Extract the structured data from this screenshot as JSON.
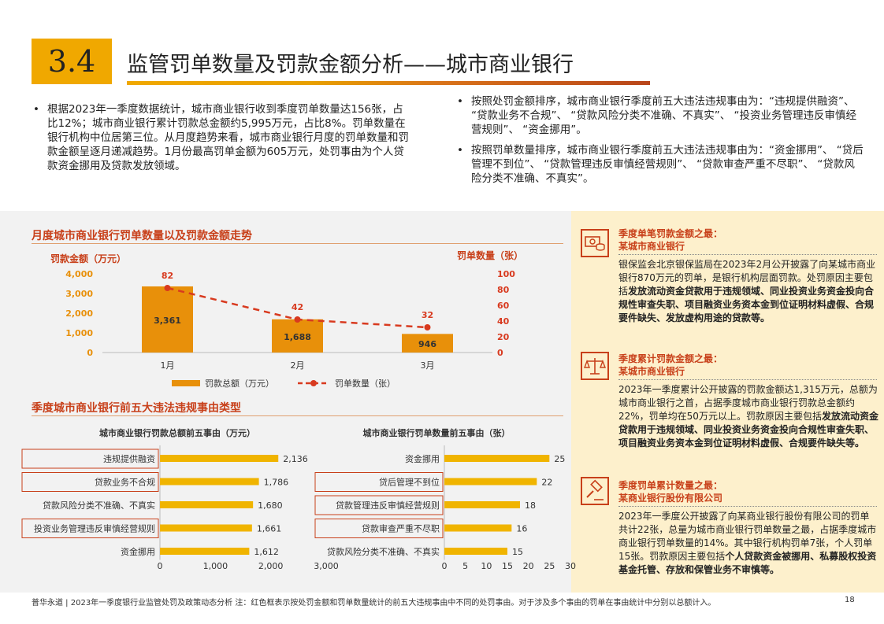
{
  "header": {
    "section_number": "3.4",
    "title": "监管罚单数量及罚款金额分析——城市商业银行"
  },
  "bullets_left": [
    "根据2023年一季度数据统计，城市商业银行收到季度罚单数量达156张，占比12%；城市商业银行累计罚款总金额约5,995万元，占比8%。罚单数量在银行机构中位居第三位。从月度趋势来看，城市商业银行月度的罚单数量和罚款金额呈逐月递减趋势。1月份最高罚单金额为605万元，处罚事由为个人贷款资金挪用及贷款发放领域。"
  ],
  "bullets_right": [
    "按照处罚金额排序，城市商业银行季度前五大违法违规事由为：“违规提供融资”、 “贷款业务不合规”、 “贷款风险分类不准确、不真实”、 “投资业务管理违反审慎经营规则”、 “资金挪用”。",
    "按照罚单数量排序，城市商业银行季度前五大违法违规事由为：“资金挪用”、 “贷后管理不到位”、 “贷款管理违反审慎经营规则”、 “贷款审查严重不尽职”、 “贷款风险分类不准确、不真实”。"
  ],
  "section1": {
    "title": "月度城市商业银行罚单数量以及罚款金额走势",
    "left_axis_title": "罚款金额（万元）",
    "right_axis_title": "罚单数量（张）"
  },
  "section2": {
    "title": "季度城市商业银行前五大违法违规事由类型"
  },
  "chart_data": [
    {
      "type": "bar",
      "title": "",
      "categories": [
        "1月",
        "2月",
        "3月"
      ],
      "series": [
        {
          "name": "罚款总额（万元）",
          "type": "bar",
          "axis": "left",
          "values": [
            3361,
            1688,
            946
          ],
          "labels": [
            "3,361",
            "1,688",
            "946"
          ],
          "color": "#e8900a"
        },
        {
          "name": "罚单数量（张）",
          "type": "line",
          "style": "dashed",
          "axis": "right",
          "values": [
            82,
            42,
            32
          ],
          "labels": [
            "82",
            "42",
            "32"
          ],
          "color": "#d83a1f"
        }
      ],
      "ylabel": "罚款金额（万元）",
      "ylim": [
        0,
        4000
      ],
      "yticks": [
        "0",
        "1,000",
        "2,000",
        "3,000",
        "4,000"
      ],
      "y2label": "罚单数量（张）",
      "y2lim": [
        0,
        100
      ],
      "y2ticks": [
        "0",
        "20",
        "40",
        "60",
        "80",
        "100"
      ],
      "legend": "bottom",
      "grid": false
    },
    {
      "type": "bar",
      "orientation": "horizontal",
      "title": "城市商业银行罚款总额前五事由（万元）",
      "categories": [
        "违规提供融资",
        "贷款业务不合规",
        "贷款风险分类不准确、不真实",
        "投资业务管理违反审慎经营规则",
        "资金挪用"
      ],
      "values": [
        2136,
        1786,
        1680,
        1661,
        1612
      ],
      "labels": [
        "2,136",
        "1,786",
        "1,680",
        "1,661",
        "1,612"
      ],
      "highlighted": [
        "违规提供融资",
        "贷款业务不合规",
        "投资业务管理违反审慎经营规则"
      ],
      "xlim": [
        0,
        3000
      ],
      "xticks": [
        "0",
        "1,000",
        "2,000",
        "3,000"
      ],
      "color": "#f0b400"
    },
    {
      "type": "bar",
      "orientation": "horizontal",
      "title": "城市商业银行罚单数量前五事由（张）",
      "categories": [
        "资金挪用",
        "贷后管理不到位",
        "贷款管理违反审慎经营规则",
        "贷款审查严重不尽职",
        "贷款风险分类不准确、不真实"
      ],
      "values": [
        25,
        22,
        18,
        16,
        15
      ],
      "labels": [
        "25",
        "22",
        "18",
        "16",
        "15"
      ],
      "highlighted": [
        "贷后管理不到位",
        "贷款管理违反审慎经营规则",
        "贷款审查严重不尽职"
      ],
      "xlim": [
        0,
        30
      ],
      "xticks": [
        "0",
        "5",
        "10",
        "15",
        "20",
        "25",
        "30"
      ],
      "color": "#f0b400"
    }
  ],
  "side_panel": [
    {
      "icon": "money-icon",
      "heading": [
        "季度单笔罚款金额之最：",
        "某城市商业银行"
      ],
      "body_html": "银保监会北京银保监局在2023年2月公开披露了向某城市商业银行870万元的罚单，是银行机构层面罚款。处罚原因主要包括<b>发放流动资金贷款用于违规领域、同业投资业务资金投向合规性审查失职、项目融资业务资本金到位证明材料虚假、合规要件缺失、发放虚构用途的贷款等。</b>"
    },
    {
      "icon": "scale-icon",
      "heading": [
        "季度累计罚款金额之最：",
        "某城市商业银行"
      ],
      "body_html": "2023年一季度累计公开披露的罚款金额达1,315万元，总额为城市商业银行之首，占据季度城市商业银行罚款总金额约22%，罚单均在50万元以上。罚款原因主要包括<b>发放流动资金贷款用于违规领域、同业投资业务资金投向合规性审查失职、项目融资业务资本金到位证明材料虚假、合规要件缺失等。</b>"
    },
    {
      "icon": "gavel-icon",
      "heading": [
        "季度罚单累计数量之最：",
        "某商业银行股份有限公司"
      ],
      "body_html": "2023年一季度公开披露了向某商业银行股份有限公司的罚单共计22张，总量为城市商业银行罚单数量之最，占据季度城市商业银行罚单数量的14%。其中银行机构罚单7张，个人罚单15张。罚款原因主要包括<b>个人贷款资金被挪用、私募股权投资基金托管、存放和保管业务不审慎等。</b>"
    }
  ],
  "footer": {
    "text": "普华永道 | 2023年一季度银行业监管处罚及政策动态分析    注：红色框表示按处罚金额和罚单数量统计的前五大违规事由中不同的处罚事由。对于涉及多个事由的罚单在事由统计中分别以总额计入。",
    "page": "18"
  }
}
